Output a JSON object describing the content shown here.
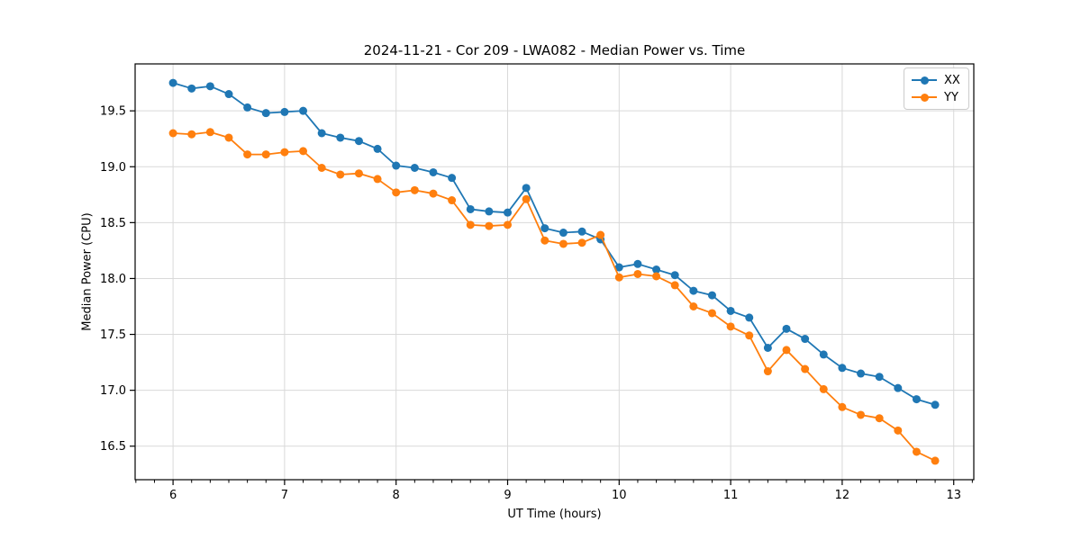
{
  "chart_data": {
    "type": "line",
    "title": "2024-11-21 - Cor 209 - LWA082 - Median Power vs. Time",
    "xlabel": "UT Time (hours)",
    "ylabel": "Median Power (CPU)",
    "xlim": [
      5.66,
      13.18
    ],
    "ylim": [
      16.2,
      19.92
    ],
    "grid": true,
    "grid_color": "#d9d9d9",
    "spine_color": "#000000",
    "legend_position": "upper right",
    "xticks": {
      "values": [
        6,
        7,
        8,
        9,
        10,
        11,
        12,
        13
      ],
      "labels": [
        "6",
        "7",
        "8",
        "9",
        "10",
        "11",
        "12",
        "13"
      ]
    },
    "x_minor_interval": 0.1666667,
    "yticks": {
      "values": [
        16.5,
        17.0,
        17.5,
        18.0,
        18.5,
        19.0,
        19.5
      ],
      "labels": [
        "16.5",
        "17.0",
        "17.5",
        "18.0",
        "18.5",
        "19.0",
        "19.5"
      ]
    },
    "x": [
      6.0,
      6.1667,
      6.3333,
      6.5,
      6.6667,
      6.8333,
      7.0,
      7.1667,
      7.3333,
      7.5,
      7.6667,
      7.8333,
      8.0,
      8.1667,
      8.3333,
      8.5,
      8.6667,
      8.8333,
      9.0,
      9.1667,
      9.3333,
      9.5,
      9.6667,
      9.8333,
      10.0,
      10.1667,
      10.3333,
      10.5,
      10.6667,
      10.8333,
      11.0,
      11.1667,
      11.3333,
      11.5,
      11.6667,
      11.8333,
      12.0,
      12.1667,
      12.3333,
      12.5,
      12.6667,
      12.8333
    ],
    "series": [
      {
        "name": "XX",
        "color": "#1f77b4",
        "values": [
          19.75,
          19.7,
          19.72,
          19.65,
          19.53,
          19.48,
          19.49,
          19.5,
          19.3,
          19.26,
          19.23,
          19.16,
          19.01,
          18.99,
          18.95,
          18.9,
          18.62,
          18.6,
          18.59,
          18.81,
          18.45,
          18.41,
          18.42,
          18.35,
          18.1,
          18.13,
          18.08,
          18.03,
          17.89,
          17.85,
          17.71,
          17.65,
          17.38,
          17.55,
          17.46,
          17.32,
          17.2,
          17.15,
          17.12,
          17.02,
          16.92,
          16.87
        ]
      },
      {
        "name": "YY",
        "color": "#ff7f0e",
        "values": [
          19.3,
          19.29,
          19.31,
          19.26,
          19.11,
          19.11,
          19.13,
          19.14,
          18.99,
          18.93,
          18.94,
          18.89,
          18.77,
          18.79,
          18.76,
          18.7,
          18.48,
          18.47,
          18.48,
          18.71,
          18.34,
          18.31,
          18.32,
          18.39,
          18.01,
          18.04,
          18.02,
          17.94,
          17.75,
          17.69,
          17.57,
          17.49,
          17.17,
          17.36,
          17.19,
          17.01,
          16.85,
          16.78,
          16.75,
          16.64,
          16.45,
          16.37
        ]
      }
    ]
  }
}
